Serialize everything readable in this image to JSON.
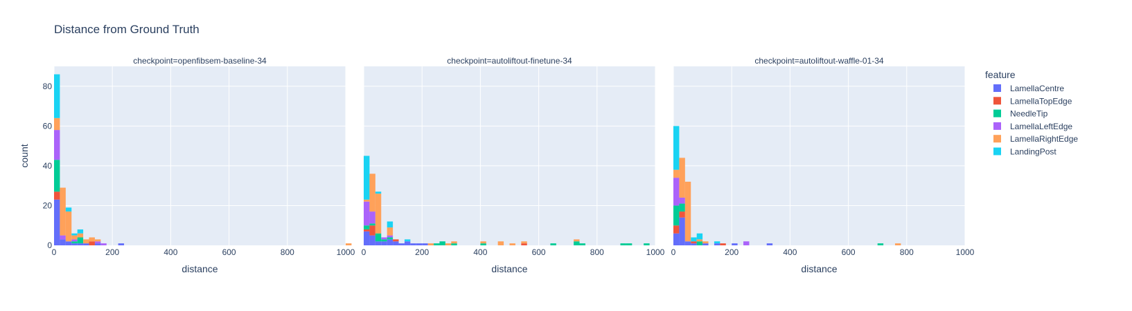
{
  "chart_data": {
    "type": "bar",
    "subtype": "stacked-histogram",
    "title": "Distance from Ground Truth",
    "xlabel": "distance",
    "ylabel": "count",
    "xlim": [
      0,
      1000
    ],
    "ylim": [
      0,
      90
    ],
    "x_ticks": [
      "0",
      "200",
      "400",
      "600",
      "800",
      "1000"
    ],
    "y_ticks": [
      "0",
      "20",
      "40",
      "60",
      "80"
    ],
    "bin_width": 20,
    "grid": true,
    "legend": {
      "title": "feature",
      "placement": "right",
      "entries": [
        {
          "name": "LamellaCentre",
          "color": "#636efa"
        },
        {
          "name": "LamellaTopEdge",
          "color": "#EF553B"
        },
        {
          "name": "NeedleTip",
          "color": "#00cc96"
        },
        {
          "name": "LamellaLeftEdge",
          "color": "#ab63fa"
        },
        {
          "name": "LamellaRightEdge",
          "color": "#FFA15A"
        },
        {
          "name": "LandingPost",
          "color": "#19d3f3"
        }
      ]
    },
    "facets": [
      {
        "title": "checkpoint=openfibsem-baseline-34",
        "bins": [
          {
            "x": 0,
            "counts": [
              23,
              4,
              16,
              15,
              6,
              22
            ]
          },
          {
            "x": 20,
            "counts": [
              3,
              0,
              0,
              2,
              24,
              0
            ]
          },
          {
            "x": 40,
            "counts": [
              2,
              0,
              0,
              0,
              15,
              2
            ]
          },
          {
            "x": 60,
            "counts": [
              1,
              0,
              1,
              1,
              2,
              1
            ]
          },
          {
            "x": 80,
            "counts": [
              1,
              0,
              3,
              0,
              2,
              2
            ]
          },
          {
            "x": 100,
            "counts": [
              1,
              0,
              0,
              0,
              2,
              0
            ]
          },
          {
            "x": 120,
            "counts": [
              0,
              2,
              0,
              0,
              2,
              0
            ]
          },
          {
            "x": 140,
            "counts": [
              1,
              0,
              0,
              1,
              1,
              0
            ]
          },
          {
            "x": 160,
            "counts": [
              0,
              0,
              0,
              1,
              0,
              0
            ]
          },
          {
            "x": 220,
            "counts": [
              1,
              0,
              0,
              0,
              0,
              0
            ]
          },
          {
            "x": 1000,
            "counts": [
              0,
              0,
              0,
              0,
              1,
              0
            ]
          }
        ]
      },
      {
        "title": "checkpoint=autoliftout-finetune-34",
        "bins": [
          {
            "x": 0,
            "counts": [
              7,
              1,
              2,
              12,
              1,
              22
            ]
          },
          {
            "x": 20,
            "counts": [
              5,
              5,
              1,
              6,
              19,
              0
            ]
          },
          {
            "x": 40,
            "counts": [
              2,
              0,
              4,
              0,
              20,
              1
            ]
          },
          {
            "x": 60,
            "counts": [
              2,
              0,
              1,
              1,
              0,
              0
            ]
          },
          {
            "x": 80,
            "counts": [
              3,
              0,
              1,
              1,
              4,
              3
            ]
          },
          {
            "x": 100,
            "counts": [
              2,
              1,
              0,
              0,
              0,
              0
            ]
          },
          {
            "x": 120,
            "counts": [
              1,
              0,
              0,
              0,
              0,
              0
            ]
          },
          {
            "x": 140,
            "counts": [
              2,
              0,
              0,
              0,
              0,
              1
            ]
          },
          {
            "x": 160,
            "counts": [
              1,
              0,
              0,
              0,
              0,
              0
            ]
          },
          {
            "x": 180,
            "counts": [
              1,
              0,
              0,
              0,
              0,
              0
            ]
          },
          {
            "x": 200,
            "counts": [
              1,
              0,
              0,
              0,
              0,
              0
            ]
          },
          {
            "x": 220,
            "counts": [
              0,
              0,
              0,
              0,
              1,
              0
            ]
          },
          {
            "x": 240,
            "counts": [
              0,
              0,
              1,
              0,
              0,
              0
            ]
          },
          {
            "x": 260,
            "counts": [
              0,
              0,
              2,
              0,
              0,
              0
            ]
          },
          {
            "x": 280,
            "counts": [
              0,
              0,
              0,
              0,
              1,
              0
            ]
          },
          {
            "x": 300,
            "counts": [
              0,
              0,
              1,
              0,
              1,
              0
            ]
          },
          {
            "x": 400,
            "counts": [
              0,
              0,
              1,
              0,
              1,
              0
            ]
          },
          {
            "x": 460,
            "counts": [
              0,
              0,
              0,
              0,
              2,
              0
            ]
          },
          {
            "x": 500,
            "counts": [
              0,
              0,
              0,
              0,
              1,
              0
            ]
          },
          {
            "x": 540,
            "counts": [
              0,
              1,
              0,
              0,
              1,
              0
            ]
          },
          {
            "x": 640,
            "counts": [
              0,
              0,
              1,
              0,
              0,
              0
            ]
          },
          {
            "x": 720,
            "counts": [
              0,
              0,
              2,
              0,
              1,
              0
            ]
          },
          {
            "x": 740,
            "counts": [
              0,
              0,
              1,
              0,
              0,
              0
            ]
          },
          {
            "x": 880,
            "counts": [
              0,
              0,
              1,
              0,
              0,
              0
            ]
          },
          {
            "x": 900,
            "counts": [
              0,
              0,
              1,
              0,
              0,
              0
            ]
          },
          {
            "x": 960,
            "counts": [
              0,
              0,
              1,
              0,
              0,
              0
            ]
          }
        ]
      },
      {
        "title": "checkpoint=autoliftout-waffle-01-34",
        "bins": [
          {
            "x": 0,
            "counts": [
              6,
              4,
              10,
              14,
              4,
              22
            ]
          },
          {
            "x": 20,
            "counts": [
              14,
              3,
              4,
              3,
              20,
              0
            ]
          },
          {
            "x": 40,
            "counts": [
              2,
              0,
              0,
              0,
              30,
              0
            ]
          },
          {
            "x": 60,
            "counts": [
              1,
              1,
              0,
              0,
              0,
              2
            ]
          },
          {
            "x": 80,
            "counts": [
              0,
              0,
              2,
              0,
              1,
              3
            ]
          },
          {
            "x": 100,
            "counts": [
              1,
              0,
              0,
              0,
              1,
              0
            ]
          },
          {
            "x": 140,
            "counts": [
              1,
              0,
              0,
              0,
              0,
              1
            ]
          },
          {
            "x": 160,
            "counts": [
              0,
              1,
              0,
              0,
              0,
              0
            ]
          },
          {
            "x": 200,
            "counts": [
              1,
              0,
              0,
              0,
              0,
              0
            ]
          },
          {
            "x": 240,
            "counts": [
              0,
              0,
              0,
              2,
              0,
              0
            ]
          },
          {
            "x": 320,
            "counts": [
              1,
              0,
              0,
              0,
              0,
              0
            ]
          },
          {
            "x": 700,
            "counts": [
              0,
              0,
              1,
              0,
              0,
              0
            ]
          },
          {
            "x": 760,
            "counts": [
              0,
              0,
              0,
              0,
              1,
              0
            ]
          }
        ]
      }
    ]
  }
}
